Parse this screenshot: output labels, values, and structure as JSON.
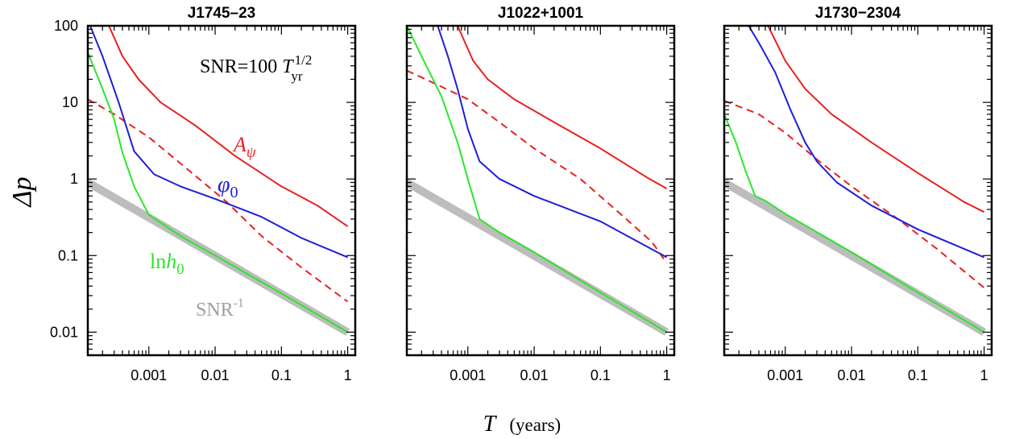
{
  "chart_data": [
    {
      "type": "line",
      "title": "J1745–23",
      "xlabel": "T",
      "xlabel_units": "(years)",
      "ylabel": "Δp",
      "xscale": "log",
      "yscale": "log",
      "xlim": [
        0.00012,
        1.3
      ],
      "ylim": [
        0.005,
        100
      ],
      "xticks": [
        "0.001",
        "0.01",
        "0.1",
        "1"
      ],
      "yticks": [
        "0.01",
        "0.1",
        "1",
        "10",
        "100"
      ],
      "annotation": {
        "prefix": "SNR=100 ",
        "var": "T",
        "sub": "yr",
        "sup": "1/2"
      },
      "series": [
        {
          "name": "A",
          "name_sub": "ψ",
          "color": "#e8211d",
          "dash": false,
          "points": [
            [
              0.00025,
              100
            ],
            [
              0.0004,
              40
            ],
            [
              0.0007,
              20
            ],
            [
              0.0015,
              10
            ],
            [
              0.005,
              5
            ],
            [
              0.02,
              2
            ],
            [
              0.1,
              0.8
            ],
            [
              0.35,
              0.45
            ],
            [
              1,
              0.24
            ]
          ]
        },
        {
          "name": "",
          "color": "#e8211d",
          "dash": true,
          "points": [
            [
              0.00012,
              11
            ],
            [
              0.0003,
              7
            ],
            [
              0.001,
              3.5
            ],
            [
              0.004,
              1.3
            ],
            [
              0.015,
              0.5
            ],
            [
              0.05,
              0.18
            ],
            [
              0.2,
              0.07
            ],
            [
              1,
              0.025
            ]
          ]
        },
        {
          "name": "φ",
          "name_sub": "0",
          "color": "#1f1fd6",
          "dash": false,
          "points": [
            [
              0.00013,
              100
            ],
            [
              0.0002,
              40
            ],
            [
              0.00035,
              10
            ],
            [
              0.0006,
              2.3
            ],
            [
              0.0012,
              1.15
            ],
            [
              0.003,
              0.8
            ],
            [
              0.01,
              0.55
            ],
            [
              0.05,
              0.32
            ],
            [
              0.2,
              0.17
            ],
            [
              1,
              0.095
            ]
          ]
        },
        {
          "name": "ln",
          "name_ital": "h",
          "name_sub": "0",
          "color": "#2ee52e",
          "dash": false,
          "points": [
            [
              0.00012,
              45
            ],
            [
              0.0002,
              15
            ],
            [
              0.0003,
              6
            ],
            [
              0.0004,
              2.2
            ],
            [
              0.0006,
              0.8
            ],
            [
              0.001,
              0.34
            ],
            [
              0.003,
              0.18
            ],
            [
              0.01,
              0.1
            ],
            [
              0.1,
              0.032
            ],
            [
              1,
              0.01
            ]
          ]
        },
        {
          "name": "SNR",
          "name_sup": "-1",
          "color": "#bdbdbd",
          "dash": false,
          "thick": true,
          "points": [
            [
              0.00012,
              0.9
            ],
            [
              1,
              0.01
            ]
          ]
        }
      ]
    },
    {
      "type": "line",
      "title": "J1022+1001",
      "xscale": "log",
      "yscale": "log",
      "xlim": [
        0.00012,
        1.3
      ],
      "ylim": [
        0.005,
        100
      ],
      "xticks": [
        "0.001",
        "0.01",
        "0.1",
        "1"
      ],
      "series": [
        {
          "name": "",
          "color": "#e8211d",
          "dash": false,
          "points": [
            [
              0.0007,
              100
            ],
            [
              0.0012,
              35
            ],
            [
              0.002,
              20
            ],
            [
              0.005,
              11
            ],
            [
              0.02,
              5.5
            ],
            [
              0.1,
              2.5
            ],
            [
              0.5,
              1.05
            ],
            [
              1,
              0.75
            ]
          ]
        },
        {
          "name": "",
          "color": "#e8211d",
          "dash": true,
          "points": [
            [
              0.00012,
              26
            ],
            [
              0.0003,
              18
            ],
            [
              0.001,
              11
            ],
            [
              0.003,
              5.5
            ],
            [
              0.01,
              2.5
            ],
            [
              0.05,
              1
            ],
            [
              0.2,
              0.35
            ],
            [
              0.6,
              0.15
            ],
            [
              1,
              0.08
            ]
          ]
        },
        {
          "name": "",
          "color": "#1f1fd6",
          "dash": false,
          "points": [
            [
              0.00035,
              100
            ],
            [
              0.0005,
              40
            ],
            [
              0.0007,
              15
            ],
            [
              0.001,
              4.5
            ],
            [
              0.0015,
              1.7
            ],
            [
              0.003,
              1.0
            ],
            [
              0.01,
              0.6
            ],
            [
              0.1,
              0.28
            ],
            [
              1,
              0.095
            ]
          ]
        },
        {
          "name": "",
          "color": "#2ee52e",
          "dash": false,
          "points": [
            [
              0.00012,
              100
            ],
            [
              0.0002,
              40
            ],
            [
              0.0004,
              12
            ],
            [
              0.0007,
              3
            ],
            [
              0.001,
              1
            ],
            [
              0.0015,
              0.3
            ],
            [
              0.003,
              0.2
            ],
            [
              0.01,
              0.11
            ],
            [
              0.1,
              0.033
            ],
            [
              1,
              0.01
            ]
          ]
        },
        {
          "name": "",
          "color": "#bdbdbd",
          "dash": false,
          "thick": true,
          "points": [
            [
              0.00012,
              0.9
            ],
            [
              1,
              0.01
            ]
          ]
        }
      ]
    },
    {
      "type": "line",
      "title": "J1730−2304",
      "xscale": "log",
      "yscale": "log",
      "xlim": [
        0.00012,
        1.3
      ],
      "ylim": [
        0.005,
        100
      ],
      "xticks": [
        "0.001",
        "0.01",
        "0.1",
        "1"
      ],
      "series": [
        {
          "name": "",
          "color": "#e8211d",
          "dash": false,
          "points": [
            [
              0.00055,
              100
            ],
            [
              0.001,
              35
            ],
            [
              0.002,
              15
            ],
            [
              0.005,
              7
            ],
            [
              0.02,
              3
            ],
            [
              0.1,
              1.2
            ],
            [
              0.5,
              0.5
            ],
            [
              1,
              0.37
            ]
          ]
        },
        {
          "name": "",
          "color": "#e8211d",
          "dash": true,
          "points": [
            [
              0.00012,
              10.5
            ],
            [
              0.0004,
              7
            ],
            [
              0.001,
              4
            ],
            [
              0.003,
              1.8
            ],
            [
              0.01,
              0.8
            ],
            [
              0.05,
              0.3
            ],
            [
              0.2,
              0.12
            ],
            [
              1,
              0.038
            ]
          ]
        },
        {
          "name": "",
          "color": "#1f1fd6",
          "dash": false,
          "points": [
            [
              0.00028,
              100
            ],
            [
              0.0004,
              60
            ],
            [
              0.0007,
              25
            ],
            [
              0.0012,
              8
            ],
            [
              0.002,
              3
            ],
            [
              0.003,
              1.7
            ],
            [
              0.006,
              0.9
            ],
            [
              0.02,
              0.45
            ],
            [
              0.1,
              0.22
            ],
            [
              1,
              0.095
            ]
          ]
        },
        {
          "name": "",
          "color": "#2ee52e",
          "dash": false,
          "points": [
            [
              0.00012,
              7
            ],
            [
              0.00018,
              3
            ],
            [
              0.00025,
              1.3
            ],
            [
              0.00035,
              0.6
            ],
            [
              0.0005,
              0.52
            ],
            [
              0.001,
              0.35
            ],
            [
              0.01,
              0.11
            ],
            [
              0.1,
              0.033
            ],
            [
              1,
              0.01
            ]
          ]
        },
        {
          "name": "",
          "color": "#bdbdbd",
          "dash": false,
          "thick": true,
          "points": [
            [
              0.00012,
              0.9
            ],
            [
              1,
              0.01
            ]
          ]
        }
      ]
    }
  ]
}
